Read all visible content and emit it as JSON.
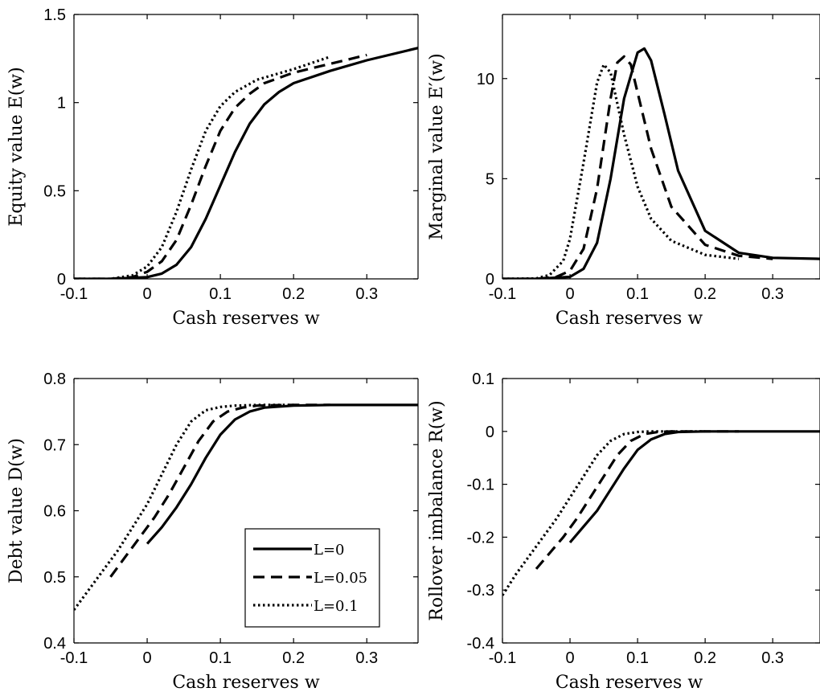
{
  "chart_data": [
    {
      "type": "line",
      "xlabel": "Cash reserves w",
      "ylabel": "Equity value E(w)",
      "xlim": [
        -0.1,
        0.37
      ],
      "ylim": [
        0,
        1.5
      ],
      "xticks": [
        "-0.1",
        "0",
        "0.1",
        "0.2",
        "0.3"
      ],
      "yticks": [
        "0",
        "0.5",
        "1",
        "1.5"
      ],
      "series": [
        {
          "name": "L=0",
          "style": "solid",
          "x": [
            -0.1,
            -0.05,
            0,
            0.02,
            0.04,
            0.06,
            0.08,
            0.1,
            0.12,
            0.14,
            0.16,
            0.18,
            0.2,
            0.25,
            0.3,
            0.37
          ],
          "y": [
            0,
            0,
            0.01,
            0.03,
            0.08,
            0.18,
            0.34,
            0.53,
            0.72,
            0.88,
            0.99,
            1.06,
            1.11,
            1.18,
            1.24,
            1.31
          ]
        },
        {
          "name": "L=0.05",
          "style": "dashed",
          "x": [
            -0.1,
            -0.05,
            -0.02,
            0,
            0.02,
            0.04,
            0.06,
            0.08,
            0.1,
            0.12,
            0.14,
            0.16,
            0.2,
            0.25,
            0.3
          ],
          "y": [
            0,
            0,
            0.01,
            0.04,
            0.1,
            0.22,
            0.42,
            0.64,
            0.84,
            0.97,
            1.05,
            1.11,
            1.17,
            1.22,
            1.27
          ]
        },
        {
          "name": "L=0.1",
          "style": "dotted",
          "x": [
            -0.1,
            -0.05,
            -0.02,
            0,
            0.02,
            0.04,
            0.06,
            0.08,
            0.1,
            0.12,
            0.15,
            0.2,
            0.25
          ],
          "y": [
            0,
            0,
            0.02,
            0.07,
            0.18,
            0.38,
            0.62,
            0.84,
            0.98,
            1.06,
            1.13,
            1.19,
            1.26
          ]
        }
      ]
    },
    {
      "type": "line",
      "xlabel": "Cash reserves w",
      "ylabel": "Marginal value E′(w)",
      "xlim": [
        -0.1,
        0.37
      ],
      "ylim": [
        0,
        13.2
      ],
      "xticks": [
        "-0.1",
        "0",
        "0.1",
        "0.2",
        "0.3"
      ],
      "yticks": [
        "0",
        "5",
        "10"
      ],
      "series": [
        {
          "name": "L=0",
          "style": "solid",
          "x": [
            -0.1,
            -0.05,
            0,
            0.02,
            0.04,
            0.06,
            0.08,
            0.1,
            0.11,
            0.12,
            0.14,
            0.16,
            0.2,
            0.25,
            0.3,
            0.37
          ],
          "y": [
            0,
            0,
            0.1,
            0.5,
            1.8,
            5.0,
            9.0,
            11.3,
            11.5,
            10.9,
            8.2,
            5.4,
            2.4,
            1.3,
            1.05,
            1.0
          ]
        },
        {
          "name": "L=0.05",
          "style": "dashed",
          "x": [
            -0.1,
            -0.05,
            -0.02,
            0,
            0.02,
            0.04,
            0.06,
            0.07,
            0.08,
            0.09,
            0.1,
            0.12,
            0.15,
            0.2,
            0.25,
            0.3
          ],
          "y": [
            0,
            0,
            0.1,
            0.4,
            1.5,
            4.5,
            9.0,
            10.8,
            11.1,
            10.7,
            9.3,
            6.5,
            3.6,
            1.7,
            1.15,
            1.0
          ]
        },
        {
          "name": "L=0.1",
          "style": "dotted",
          "x": [
            -0.1,
            -0.05,
            -0.03,
            -0.01,
            0,
            0.02,
            0.04,
            0.05,
            0.06,
            0.08,
            0.1,
            0.12,
            0.15,
            0.2,
            0.25
          ],
          "y": [
            0,
            0.02,
            0.2,
            0.9,
            2.0,
            5.8,
            9.8,
            10.7,
            10.3,
            7.2,
            4.6,
            3.0,
            1.9,
            1.2,
            1.0
          ]
        }
      ]
    },
    {
      "type": "line",
      "xlabel": "Cash reserves w",
      "ylabel": "Debt value D(w)",
      "xlim": [
        -0.1,
        0.37
      ],
      "ylim": [
        0.4,
        0.8
      ],
      "xticks": [
        "-0.1",
        "0",
        "0.1",
        "0.2",
        "0.3"
      ],
      "yticks": [
        "0.4",
        "0.5",
        "0.6",
        "0.7",
        "0.8"
      ],
      "series": [
        {
          "name": "L=0",
          "style": "solid",
          "x": [
            0,
            0.02,
            0.04,
            0.06,
            0.08,
            0.1,
            0.12,
            0.14,
            0.16,
            0.2,
            0.25,
            0.3,
            0.37
          ],
          "y": [
            0.55,
            0.575,
            0.605,
            0.64,
            0.68,
            0.715,
            0.738,
            0.75,
            0.756,
            0.759,
            0.76,
            0.76,
            0.76
          ]
        },
        {
          "name": "L=0.05",
          "style": "dashed",
          "x": [
            -0.05,
            -0.03,
            -0.01,
            0.01,
            0.03,
            0.05,
            0.07,
            0.09,
            0.11,
            0.13,
            0.15,
            0.2,
            0.25
          ],
          "y": [
            0.5,
            0.53,
            0.56,
            0.59,
            0.625,
            0.665,
            0.705,
            0.735,
            0.75,
            0.756,
            0.759,
            0.76,
            0.76
          ]
        },
        {
          "name": "L=0.1",
          "style": "dotted",
          "x": [
            -0.1,
            -0.08,
            -0.06,
            -0.04,
            -0.02,
            0,
            0.02,
            0.04,
            0.06,
            0.08,
            0.1,
            0.12,
            0.15,
            0.2
          ],
          "y": [
            0.45,
            0.48,
            0.51,
            0.54,
            0.575,
            0.61,
            0.655,
            0.7,
            0.735,
            0.752,
            0.757,
            0.759,
            0.76,
            0.76
          ]
        }
      ]
    },
    {
      "type": "line",
      "xlabel": "Cash reserves w",
      "ylabel": "Rollover imbalance R(w)",
      "xlim": [
        -0.1,
        0.37
      ],
      "ylim": [
        -0.4,
        0.1
      ],
      "xticks": [
        "-0.1",
        "0",
        "0.1",
        "0.2",
        "0.3"
      ],
      "yticks": [
        "-0.4",
        "-0.3",
        "-0.2",
        "-0.1",
        "0",
        "0.1"
      ],
      "series": [
        {
          "name": "L=0",
          "style": "solid",
          "x": [
            0,
            0.02,
            0.04,
            0.06,
            0.08,
            0.1,
            0.12,
            0.14,
            0.16,
            0.2,
            0.25,
            0.3,
            0.37
          ],
          "y": [
            -0.21,
            -0.18,
            -0.15,
            -0.11,
            -0.07,
            -0.035,
            -0.015,
            -0.005,
            -0.001,
            0,
            0,
            0,
            0
          ]
        },
        {
          "name": "L=0.05",
          "style": "dashed",
          "x": [
            -0.05,
            -0.03,
            -0.01,
            0.01,
            0.03,
            0.05,
            0.07,
            0.09,
            0.11,
            0.13,
            0.15,
            0.2,
            0.25
          ],
          "y": [
            -0.26,
            -0.23,
            -0.2,
            -0.165,
            -0.125,
            -0.085,
            -0.045,
            -0.018,
            -0.005,
            -0.001,
            0,
            0,
            0
          ]
        },
        {
          "name": "L=0.1",
          "style": "dotted",
          "x": [
            -0.1,
            -0.08,
            -0.06,
            -0.04,
            -0.02,
            0,
            0.02,
            0.04,
            0.06,
            0.08,
            0.1,
            0.12,
            0.15,
            0.2
          ],
          "y": [
            -0.31,
            -0.27,
            -0.235,
            -0.2,
            -0.165,
            -0.125,
            -0.085,
            -0.045,
            -0.018,
            -0.005,
            -0.001,
            0,
            0,
            0
          ]
        }
      ]
    }
  ],
  "legend": {
    "location": "inside-bottom-right of bottom-left panel",
    "entries": [
      {
        "label": "L=0",
        "style": "solid"
      },
      {
        "label": "L=0.05",
        "style": "dashed"
      },
      {
        "label": "L=0.1",
        "style": "dotted"
      }
    ]
  }
}
